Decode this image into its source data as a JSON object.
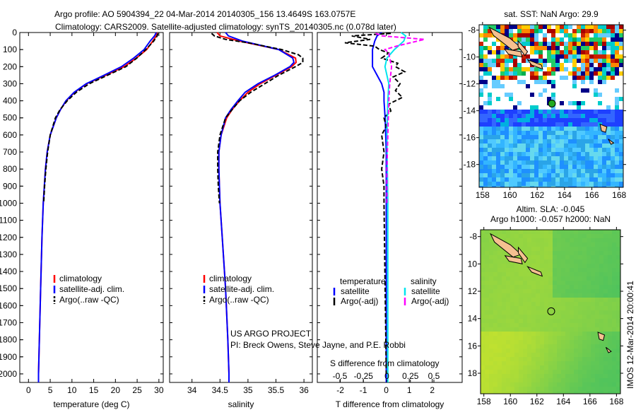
{
  "title_line1": "Argo profile: AO 5904394_22 04-Mar-2014 20140305_156 13.4649S 163.0757E",
  "title_line2": "Climatology: CARS2009. Satellite-adjusted climatology: synTS_20140305.nc (0.078d later)",
  "credit_line1": "US ARGO PROJECT",
  "credit_line2": "PI: Breck Owens, Steve Jayne, and P.E. Robbi",
  "side_stamp": "IMOS 12-Mar-2014 20:00:41",
  "colors": {
    "climatology": "#ff0000",
    "satellite": "#0000ff",
    "argo": "#000000",
    "sal_satellite": "#00e5ee",
    "sal_argo": "#ff00ff"
  },
  "chart_data": [
    {
      "type": "line",
      "xlabel": "temperature (deg C)",
      "ylabel": "",
      "xlim": [
        -2,
        31
      ],
      "ylim": [
        2050,
        0
      ],
      "xticks": [
        0,
        5,
        10,
        15,
        20,
        25,
        30
      ],
      "yticks": [
        0,
        100,
        200,
        300,
        400,
        500,
        600,
        700,
        800,
        900,
        1000,
        1100,
        1200,
        1300,
        1400,
        1500,
        1600,
        1700,
        1800,
        1900,
        2000
      ],
      "legend": [
        "climatology",
        "satellite-adj. clim.",
        "Argo(..raw -QC)"
      ],
      "series": [
        {
          "name": "climatology",
          "color": "#ff0000",
          "depth": [
            0,
            20,
            50,
            100,
            150,
            200,
            250,
            300,
            350,
            400,
            450,
            500,
            600,
            700,
            800,
            1000,
            1200,
            1500,
            1800,
            2000,
            2050
          ],
          "values": [
            29.6,
            29.4,
            28.6,
            27.2,
            24.8,
            22.0,
            17.8,
            13.4,
            10.6,
            8.7,
            7.4,
            6.4,
            5.0,
            4.3,
            3.9,
            3.4,
            3.1,
            2.8,
            2.5,
            2.3,
            2.3
          ]
        },
        {
          "name": "satellite-adj. clim.",
          "color": "#0000ff",
          "depth": [
            0,
            20,
            50,
            100,
            150,
            200,
            250,
            300,
            350,
            400,
            450,
            500,
            600,
            700,
            800,
            1000,
            1200,
            1500,
            1800,
            2000,
            2050
          ],
          "values": [
            29.4,
            29.0,
            28.0,
            26.6,
            24.2,
            21.4,
            17.4,
            13.3,
            10.5,
            8.6,
            7.4,
            6.4,
            5.0,
            4.3,
            3.9,
            3.4,
            3.1,
            2.8,
            2.5,
            2.3,
            2.3
          ]
        },
        {
          "name": "Argo(..raw -QC)",
          "color": "#000000",
          "depth": [
            5,
            20,
            50,
            100,
            150,
            200,
            250,
            300,
            350,
            400,
            450,
            500,
            600,
            700,
            800,
            900,
            1000
          ],
          "values": [
            29.8,
            29.6,
            28.8,
            27.0,
            24.9,
            22.4,
            18.2,
            14.0,
            11.0,
            8.9,
            7.3,
            6.2,
            5.0,
            4.4,
            4.0,
            3.7,
            3.5
          ]
        }
      ]
    },
    {
      "type": "line",
      "xlabel": "salinity",
      "xlim": [
        33.6,
        36.15
      ],
      "ylim": [
        2050,
        0
      ],
      "xticks": [
        34,
        34.5,
        35,
        35.5,
        36
      ],
      "legend": [
        "climatology",
        "satellite-adj. clim.",
        "Argo(..raw -QC)"
      ],
      "series": [
        {
          "name": "climatology",
          "color": "#ff0000",
          "depth": [
            0,
            20,
            50,
            100,
            150,
            175,
            200,
            250,
            300,
            350,
            400,
            450,
            500,
            600,
            700,
            800,
            1000,
            1200,
            1500,
            1800,
            2000,
            2050
          ],
          "values": [
            34.45,
            34.5,
            34.85,
            35.55,
            35.85,
            35.86,
            35.78,
            35.5,
            35.22,
            35.0,
            34.85,
            34.72,
            34.62,
            34.52,
            34.48,
            34.48,
            34.5,
            34.54,
            34.6,
            34.64,
            34.66,
            34.66
          ]
        },
        {
          "name": "satellite-adj. clim.",
          "color": "#0000ff",
          "depth": [
            0,
            20,
            50,
            100,
            150,
            175,
            200,
            250,
            300,
            350,
            400,
            450,
            500,
            600,
            700,
            800,
            1000,
            1200,
            1500,
            1800,
            2000,
            2050
          ],
          "values": [
            34.6,
            34.65,
            34.9,
            35.55,
            35.8,
            35.82,
            35.75,
            35.48,
            35.18,
            34.95,
            34.82,
            34.7,
            34.6,
            34.52,
            34.48,
            34.48,
            34.5,
            34.54,
            34.6,
            34.64,
            34.66,
            34.66
          ]
        },
        {
          "name": "Argo(..raw -QC)",
          "color": "#000000",
          "depth": [
            5,
            20,
            40,
            60,
            100,
            130,
            150,
            175,
            200,
            250,
            300,
            350,
            400,
            450,
            500,
            600,
            700,
            800,
            900,
            1000
          ],
          "values": [
            34.35,
            34.4,
            34.6,
            35.0,
            35.6,
            35.9,
            35.98,
            35.98,
            35.85,
            35.55,
            35.3,
            35.05,
            34.85,
            34.72,
            34.6,
            34.5,
            34.46,
            34.46,
            34.47,
            34.49
          ]
        }
      ]
    },
    {
      "type": "line",
      "xlabel": "T difference from climatology",
      "x2label": "S difference from climatology",
      "xlim": [
        -3.0,
        3.3
      ],
      "ylim": [
        2050,
        0
      ],
      "xticks": [
        -2,
        -1,
        0,
        1,
        2
      ],
      "x2ticks": [
        -0.5,
        -0.25,
        0,
        0.25,
        0.5
      ],
      "x2tick_labels": [
        "-0.5",
        "-0.25",
        "0",
        "0.25",
        "0.5"
      ],
      "legend_headers": [
        "temperature",
        "salinity"
      ],
      "legend": [
        "satellite",
        "Argo(-adj)",
        "satellite",
        "Argo(-adj)"
      ],
      "series": [
        {
          "name": "temperature satellite",
          "color": "#0000ff",
          "axis": "T",
          "depth": [
            0,
            20,
            50,
            100,
            150,
            200,
            250,
            300,
            350,
            400,
            500,
            700,
            1000,
            2050
          ],
          "values": [
            -0.2,
            -0.4,
            -0.5,
            -0.6,
            -0.6,
            -0.6,
            -0.4,
            -0.2,
            -0.1,
            -0.1,
            -0.05,
            0,
            0,
            0
          ]
        },
        {
          "name": "temperature Argo(-adj)",
          "color": "#000000",
          "axis": "T",
          "depth": [
            5,
            20,
            40,
            60,
            80,
            100,
            120,
            150,
            180,
            200,
            230,
            260,
            300,
            340,
            380,
            420,
            460,
            500,
            550,
            600,
            700,
            800,
            900,
            1000,
            1500,
            2000
          ],
          "values": [
            0.2,
            -1.5,
            -0.7,
            -1.8,
            -0.5,
            -0.3,
            0.1,
            -0.2,
            0.5,
            0.4,
            0.8,
            0.3,
            0.6,
            0.4,
            0.7,
            0.1,
            0.2,
            -0.1,
            0,
            -0.2,
            -0.1,
            -0.2,
            -0.1,
            -0.1,
            -0.05,
            0
          ]
        },
        {
          "name": "salinity satellite",
          "color": "#00e5ee",
          "axis": "S",
          "depth": [
            0,
            20,
            50,
            80,
            100,
            150,
            200,
            300,
            400,
            600,
            1000,
            2050
          ],
          "values": [
            0.15,
            0.2,
            0.18,
            0.12,
            0.08,
            0.0,
            -0.02,
            0.02,
            0.01,
            0.0,
            0.01,
            0.01
          ]
        },
        {
          "name": "salinity Argo(-adj)",
          "color": "#ff00ff",
          "axis": "S",
          "depth": [
            5,
            20,
            40,
            60,
            80,
            100,
            120,
            150,
            200,
            300,
            400,
            600,
            800,
            1000
          ],
          "values": [
            -0.12,
            -0.05,
            0.4,
            0.25,
            0.1,
            -0.02,
            0.02,
            0.03,
            0.05,
            0.03,
            0.02,
            0.01,
            0.0,
            0.0
          ]
        }
      ]
    },
    {
      "type": "heatmap",
      "title": "sat. SST: NaN Argo: 29.9",
      "xticks": [
        158,
        160,
        162,
        164,
        166,
        168
      ],
      "yticks": [
        -8,
        -10,
        -12,
        -14,
        -16,
        -18
      ],
      "xlim": [
        157.75,
        168.3
      ],
      "ylim": [
        -19.7,
        -7.6
      ],
      "marker": {
        "lon": 163.0757,
        "lat": -13.4649
      }
    },
    {
      "type": "heatmap",
      "title_line1": "Altim. SLA: -0.045",
      "title_line2": "Argo h1000: -0.057 h2000: NaN",
      "xticks": [
        158,
        160,
        162,
        164,
        166,
        168
      ],
      "yticks": [
        -8,
        -10,
        -12,
        -14,
        -16,
        -18
      ],
      "ytick_labels": [
        "-8",
        "10",
        "12",
        "14",
        "16",
        "18"
      ],
      "xlim": [
        157.75,
        168.3
      ],
      "ylim": [
        -19.5,
        -7.5
      ],
      "marker": {
        "lon": 163.0757,
        "lat": -13.4649
      }
    }
  ]
}
